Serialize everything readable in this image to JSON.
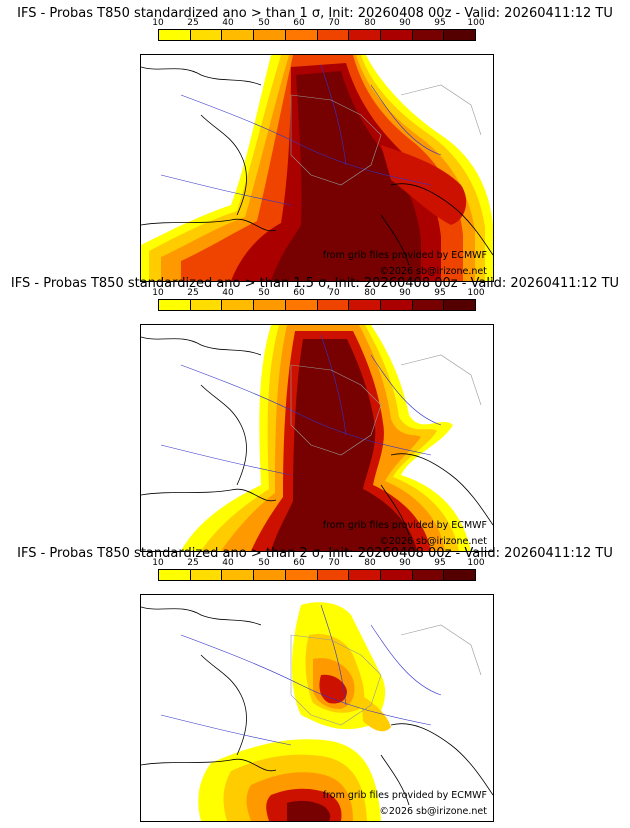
{
  "colorbar": {
    "ticks": [
      "10",
      "25",
      "40",
      "50",
      "60",
      "70",
      "80",
      "90",
      "95",
      "100"
    ],
    "colors": [
      "#ffff00",
      "#ffdd00",
      "#ffbb00",
      "#ff9900",
      "#ff7700",
      "#ee4400",
      "#cc1100",
      "#aa0000",
      "#770000",
      "#550000"
    ]
  },
  "credits": {
    "source": "from grib files provided by ECMWF",
    "copyright": "©2026 sb@irizone.net"
  },
  "panels": [
    {
      "title": "IFS - Probas T850  standardized ano > than 1 σ, Init: 20260408 00z - Valid: 20260411:12 TU"
    },
    {
      "title": "IFS - Probas T850  standardized ano > than 1.5 σ, Init: 20260408 00z - Valid: 20260411:12 TU"
    },
    {
      "title": "IFS - Probas T850  standardized ano > than 2 σ, Init: 20260408 00z - Valid: 20260411:12 TU"
    }
  ]
}
